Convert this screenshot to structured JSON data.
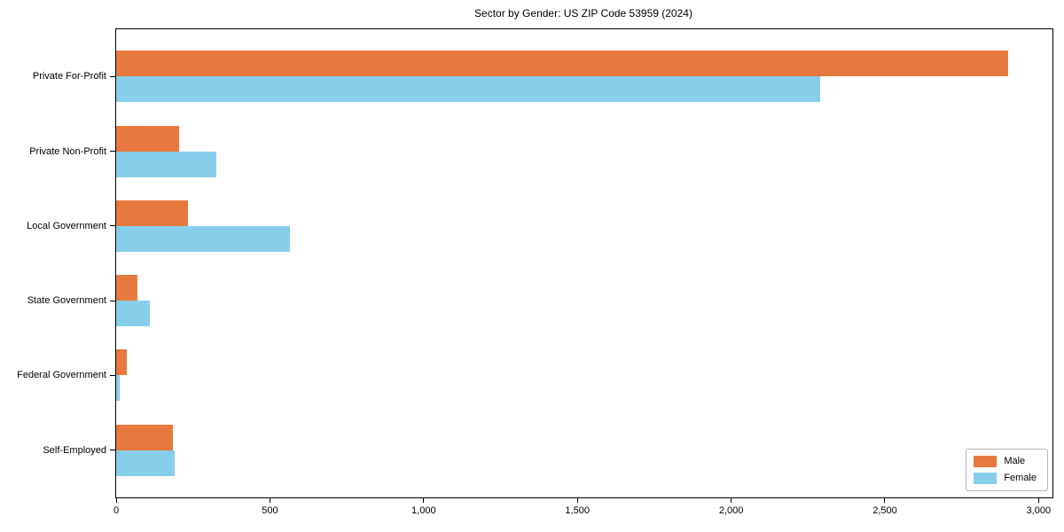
{
  "figure": {
    "title": "Sector by Gender: US ZIP Code 53959 (2024)"
  },
  "chart_data": {
    "type": "bar",
    "orientation": "horizontal",
    "title": "Sector by Gender: US ZIP Code 53959 (2024)",
    "categories": [
      "Private For-Profit",
      "Private Non-Profit",
      "Local Government",
      "State Government",
      "Federal Government",
      "Self-Employed"
    ],
    "series": [
      {
        "name": "Male",
        "color": "#e8793e",
        "values": [
          2900,
          205,
          235,
          70,
          35,
          185
        ]
      },
      {
        "name": "Female",
        "color": "#87ceeb",
        "values": [
          2290,
          325,
          565,
          110,
          12,
          190
        ]
      }
    ],
    "xlabel": "",
    "ylabel": "",
    "xlim": [
      0,
      3045
    ],
    "xticks": {
      "values": [
        0,
        500,
        1000,
        1500,
        2000,
        2500,
        3000
      ],
      "labels": [
        "0",
        "500",
        "1,000",
        "1,500",
        "2,000",
        "2,500",
        "3,000"
      ]
    },
    "grid": false,
    "legend": {
      "position": "lower right",
      "entries": [
        "Male",
        "Female"
      ]
    },
    "colors": {
      "male": "#e8793e",
      "female": "#87ceeb",
      "spine": "#000000",
      "text": "#000000",
      "legend_border": "#b5b5b5"
    }
  }
}
